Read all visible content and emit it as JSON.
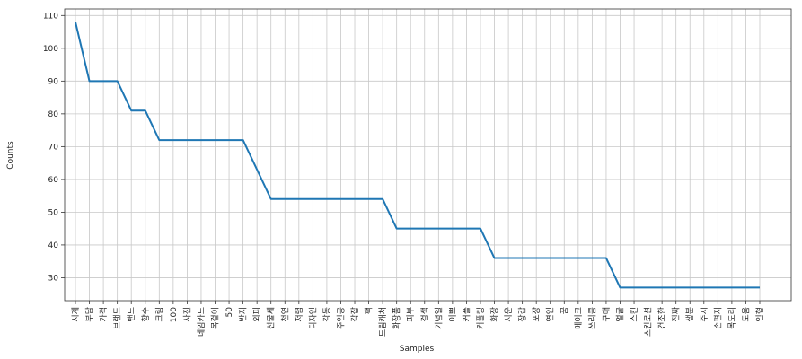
{
  "chart_data": {
    "type": "line",
    "xlabel": "Samples",
    "ylabel": "Counts",
    "grid": true,
    "ylim": [
      23,
      112
    ],
    "yticks": [
      30,
      40,
      50,
      60,
      70,
      80,
      90,
      100,
      110
    ],
    "series_color": "#1f77b4",
    "categories": [
      "시계",
      "부담",
      "가격",
      "브랜드",
      "밴드",
      "향수",
      "크림",
      "100",
      "사진",
      "네임카드",
      "목걸이",
      "50",
      "반지",
      "외피",
      "선물세",
      "천연",
      "저렴",
      "디자인",
      "감동",
      "주인공",
      "각잡",
      "팩",
      "드림캐쳐",
      "화장품",
      "피부",
      "검색",
      "기념일",
      "이쁘",
      "커플",
      "커플링",
      "화장",
      "서운",
      "장갑",
      "포장",
      "연인",
      "꿈",
      "메이크",
      "쓰리콤",
      "구매",
      "얼굴",
      "스킨",
      "스킨로션",
      "건조한",
      "진짜",
      "생분",
      "주시",
      "손편지",
      "목도리",
      "도움",
      "인형"
    ],
    "values": [
      108,
      90,
      90,
      90,
      81,
      81,
      72,
      72,
      72,
      72,
      72,
      72,
      72,
      63,
      54,
      54,
      54,
      54,
      54,
      54,
      54,
      54,
      54,
      45,
      45,
      45,
      45,
      45,
      45,
      45,
      36,
      36,
      36,
      36,
      36,
      36,
      36,
      36,
      36,
      27,
      27,
      27,
      27,
      27,
      27,
      27,
      27,
      27,
      27,
      27
    ]
  }
}
